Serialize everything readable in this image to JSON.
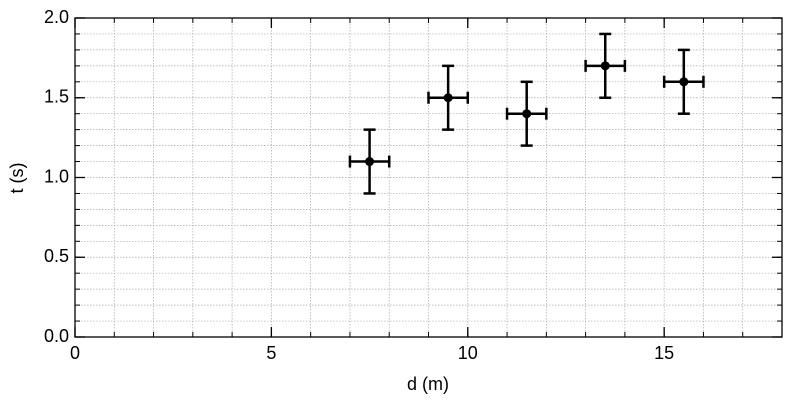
{
  "chart_data": {
    "type": "scatter",
    "xlabel": "d (m)",
    "ylabel": "t (s)",
    "x": [
      7.5,
      9.5,
      11.5,
      13.5,
      15.5
    ],
    "values": [
      1.1,
      1.5,
      1.4,
      1.7,
      1.6
    ],
    "xerr": [
      0.5,
      0.5,
      0.5,
      0.5,
      0.5
    ],
    "yerr": [
      0.2,
      0.2,
      0.2,
      0.2,
      0.2
    ],
    "color": "#000000",
    "xlim": [
      0,
      18
    ],
    "ylim": [
      0,
      2.0
    ],
    "xticks": [
      0,
      5,
      10,
      15
    ],
    "yticks": [
      {
        "value": 0,
        "label": "0.0"
      },
      0.5,
      {
        "value": 1,
        "label": "1.0"
      },
      1.5,
      {
        "value": 2,
        "label": "2.0"
      }
    ],
    "xminorticks": [
      0,
      1,
      2,
      3,
      4,
      5,
      6,
      7,
      8,
      9,
      10,
      11,
      12,
      13,
      14,
      15,
      16,
      17,
      18
    ],
    "yminorticks": [
      0,
      0.1,
      0.2,
      0.3,
      0.4,
      0.5,
      0.6,
      0.7,
      0.8,
      0.9,
      1.0,
      1.1,
      1.2,
      1.3,
      1.4,
      1.5,
      1.6,
      1.7,
      1.8,
      1.9,
      2.0
    ],
    "grid": true
  }
}
